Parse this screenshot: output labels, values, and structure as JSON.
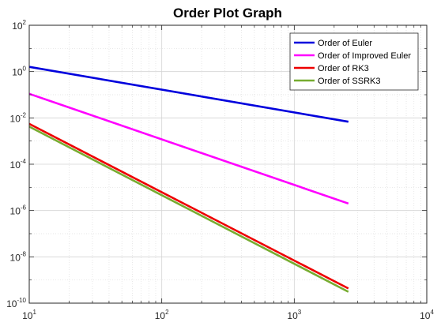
{
  "chart_data": {
    "type": "line",
    "title": "Order Plot Graph",
    "xlabel": "",
    "ylabel": "",
    "xscale": "log",
    "yscale": "log",
    "xlim": [
      10,
      10000
    ],
    "ylim": [
      1e-10,
      100
    ],
    "grid": true,
    "minor_grid": true,
    "legend_position": "top-right",
    "x_ticks": [
      {
        "base": "10",
        "exp": "1",
        "value": 10
      },
      {
        "base": "10",
        "exp": "2",
        "value": 100
      },
      {
        "base": "10",
        "exp": "3",
        "value": 1000
      },
      {
        "base": "10",
        "exp": "4",
        "value": 10000
      }
    ],
    "y_ticks": [
      {
        "base": "10",
        "exp": "-10",
        "value": 1e-10
      },
      {
        "base": "10",
        "exp": "-8",
        "value": 1e-08
      },
      {
        "base": "10",
        "exp": "-6",
        "value": 1e-06
      },
      {
        "base": "10",
        "exp": "-4",
        "value": 0.0001
      },
      {
        "base": "10",
        "exp": "-2",
        "value": 0.01
      },
      {
        "base": "10",
        "exp": "0",
        "value": 1
      },
      {
        "base": "10",
        "exp": "2",
        "value": 100
      }
    ],
    "series": [
      {
        "name": "Order of Euler",
        "color": "#0000dd",
        "x": [
          10,
          2560
        ],
        "y": [
          1.6,
          0.0068
        ]
      },
      {
        "name": "Order of Improved Euler",
        "color": "#ff00ff",
        "x": [
          10,
          2560
        ],
        "y": [
          0.11,
          2e-06
        ]
      },
      {
        "name": "Order of RK3",
        "color": "#ee0000",
        "x": [
          10,
          2560
        ],
        "y": [
          0.0055,
          4.3e-10
        ]
      },
      {
        "name": "Order of SSRK3",
        "color": "#77ac30",
        "x": [
          10,
          2560
        ],
        "y": [
          0.0042,
          3.1e-10
        ]
      }
    ]
  }
}
